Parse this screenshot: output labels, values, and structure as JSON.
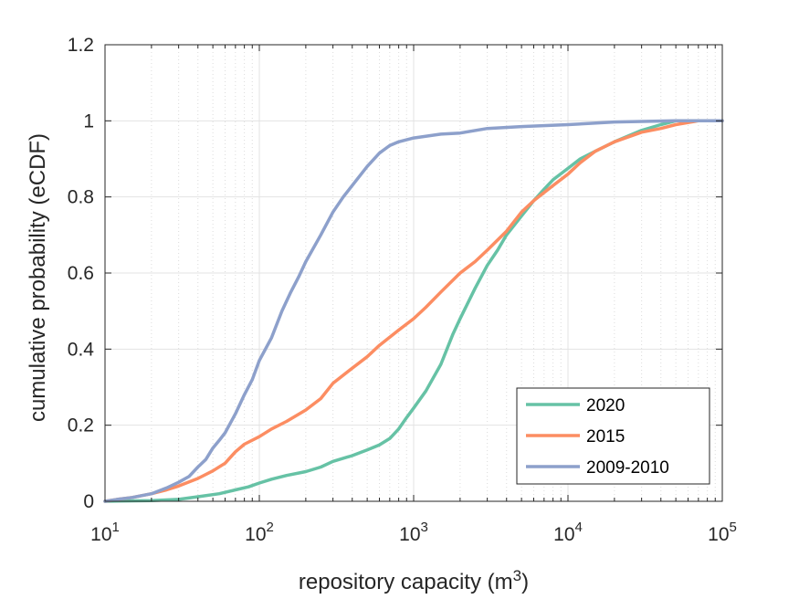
{
  "chart_data": {
    "type": "line",
    "xlabel": "repository capacity (m",
    "xlabel_sup": "3",
    "xlabel_close": ")",
    "ylabel": "cumulative probability (eCDF)",
    "xscale": "log",
    "xlim": [
      10,
      100000
    ],
    "ylim": [
      0,
      1.2
    ],
    "grid": true,
    "legend_position": "bottom-right",
    "x_ticks": [
      {
        "value": 10,
        "base": "10",
        "exp": "1"
      },
      {
        "value": 100,
        "base": "10",
        "exp": "2"
      },
      {
        "value": 1000,
        "base": "10",
        "exp": "3"
      },
      {
        "value": 10000,
        "base": "10",
        "exp": "4"
      },
      {
        "value": 100000,
        "base": "10",
        "exp": "5"
      }
    ],
    "y_ticks": [
      {
        "value": 0,
        "label": "0"
      },
      {
        "value": 0.2,
        "label": "0.2"
      },
      {
        "value": 0.4,
        "label": "0.4"
      },
      {
        "value": 0.6,
        "label": "0.6"
      },
      {
        "value": 0.8,
        "label": "0.8"
      },
      {
        "value": 1,
        "label": "1"
      },
      {
        "value": 1.2,
        "label": "1.2"
      }
    ],
    "series": [
      {
        "name": "2020",
        "color": "#66c2a5",
        "points": [
          [
            10,
            0
          ],
          [
            20,
            0.002
          ],
          [
            30,
            0.005
          ],
          [
            40,
            0.012
          ],
          [
            55,
            0.02
          ],
          [
            70,
            0.03
          ],
          [
            85,
            0.038
          ],
          [
            100,
            0.048
          ],
          [
            120,
            0.058
          ],
          [
            150,
            0.068
          ],
          [
            200,
            0.078
          ],
          [
            250,
            0.09
          ],
          [
            300,
            0.105
          ],
          [
            400,
            0.12
          ],
          [
            500,
            0.135
          ],
          [
            600,
            0.148
          ],
          [
            700,
            0.165
          ],
          [
            800,
            0.19
          ],
          [
            900,
            0.22
          ],
          [
            1000,
            0.245
          ],
          [
            1200,
            0.29
          ],
          [
            1500,
            0.36
          ],
          [
            1800,
            0.44
          ],
          [
            2000,
            0.48
          ],
          [
            2500,
            0.56
          ],
          [
            3000,
            0.62
          ],
          [
            3500,
            0.66
          ],
          [
            4000,
            0.7
          ],
          [
            5000,
            0.75
          ],
          [
            6000,
            0.79
          ],
          [
            7000,
            0.82
          ],
          [
            8000,
            0.845
          ],
          [
            10000,
            0.875
          ],
          [
            12000,
            0.9
          ],
          [
            15000,
            0.92
          ],
          [
            20000,
            0.945
          ],
          [
            30000,
            0.975
          ],
          [
            40000,
            0.99
          ],
          [
            50000,
            1
          ],
          [
            100000,
            1
          ]
        ]
      },
      {
        "name": "2015",
        "color": "#fc8d62",
        "points": [
          [
            10,
            0
          ],
          [
            12,
            0.005
          ],
          [
            15,
            0.01
          ],
          [
            20,
            0.02
          ],
          [
            25,
            0.03
          ],
          [
            30,
            0.04
          ],
          [
            40,
            0.06
          ],
          [
            50,
            0.08
          ],
          [
            60,
            0.1
          ],
          [
            70,
            0.13
          ],
          [
            80,
            0.15
          ],
          [
            100,
            0.17
          ],
          [
            120,
            0.19
          ],
          [
            150,
            0.21
          ],
          [
            200,
            0.24
          ],
          [
            250,
            0.27
          ],
          [
            300,
            0.31
          ],
          [
            400,
            0.35
          ],
          [
            500,
            0.38
          ],
          [
            600,
            0.41
          ],
          [
            800,
            0.45
          ],
          [
            1000,
            0.48
          ],
          [
            1200,
            0.51
          ],
          [
            1500,
            0.55
          ],
          [
            2000,
            0.6
          ],
          [
            2500,
            0.63
          ],
          [
            3000,
            0.66
          ],
          [
            4000,
            0.71
          ],
          [
            5000,
            0.76
          ],
          [
            6000,
            0.79
          ],
          [
            8000,
            0.83
          ],
          [
            10000,
            0.86
          ],
          [
            12000,
            0.89
          ],
          [
            15000,
            0.92
          ],
          [
            20000,
            0.945
          ],
          [
            30000,
            0.97
          ],
          [
            40000,
            0.98
          ],
          [
            50000,
            0.99
          ],
          [
            70000,
            1
          ],
          [
            100000,
            1
          ]
        ]
      },
      {
        "name": "2009-2010",
        "color": "#8da0cb",
        "points": [
          [
            10,
            0
          ],
          [
            12,
            0.005
          ],
          [
            15,
            0.01
          ],
          [
            20,
            0.02
          ],
          [
            25,
            0.035
          ],
          [
            30,
            0.05
          ],
          [
            35,
            0.065
          ],
          [
            40,
            0.09
          ],
          [
            45,
            0.11
          ],
          [
            50,
            0.14
          ],
          [
            55,
            0.16
          ],
          [
            60,
            0.18
          ],
          [
            70,
            0.23
          ],
          [
            80,
            0.28
          ],
          [
            90,
            0.32
          ],
          [
            100,
            0.37
          ],
          [
            120,
            0.43
          ],
          [
            140,
            0.5
          ],
          [
            160,
            0.55
          ],
          [
            180,
            0.59
          ],
          [
            200,
            0.63
          ],
          [
            250,
            0.7
          ],
          [
            300,
            0.76
          ],
          [
            350,
            0.8
          ],
          [
            400,
            0.83
          ],
          [
            500,
            0.88
          ],
          [
            600,
            0.915
          ],
          [
            700,
            0.935
          ],
          [
            800,
            0.945
          ],
          [
            1000,
            0.955
          ],
          [
            1500,
            0.965
          ],
          [
            2000,
            0.968
          ],
          [
            3000,
            0.98
          ],
          [
            5000,
            0.985
          ],
          [
            10000,
            0.99
          ],
          [
            20000,
            0.997
          ],
          [
            50000,
            1
          ],
          [
            100000,
            1
          ]
        ]
      }
    ]
  }
}
